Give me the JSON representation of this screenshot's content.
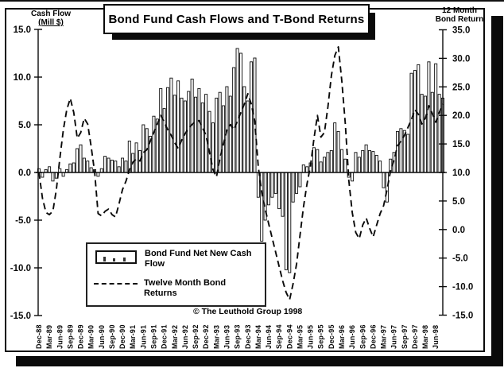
{
  "title": "Bond Fund Cash Flows and T-Bond Returns",
  "header": {
    "left_axis_title_line1": "Cash Flow",
    "left_axis_title_line2": "(Mill $)",
    "right_axis_title_line1": "12 Month",
    "right_axis_title_line2": "Bond Return"
  },
  "legend": {
    "bar_label_line1": "Bond Fund Net New Cash",
    "bar_label_line2": "Flow",
    "line_label_line1": "Twelve Month Bond",
    "line_label_line2": "Returns"
  },
  "footer": {
    "copyright": "© The Leuthold Group 1998"
  },
  "colors": {
    "ink": "#0a0a0a",
    "paper": "#ffffff"
  },
  "chart_data": {
    "type": "combo",
    "x_frequency": "monthly",
    "x_start": "Dec-88",
    "x_end": "Aug-98",
    "n_months": 117,
    "x_tick_labels": [
      "Dec-88",
      "Mar-89",
      "Jun-89",
      "Sep-89",
      "Dec-89",
      "Mar-90",
      "Jun-90",
      "Sep-90",
      "Dec-90",
      "Mar-91",
      "Jun-91",
      "Sep-91",
      "Dec-91",
      "Mar-92",
      "Jun-92",
      "Sep-92",
      "Dec-92",
      "Mar-93",
      "Jun-93",
      "Sep-93",
      "Dec-93",
      "Mar-94",
      "Jun-94",
      "Sep-94",
      "Dec-94",
      "Mar-95",
      "Jun-95",
      "Sep-95",
      "Dec-95",
      "Mar-96",
      "Jun-96",
      "Sep-96",
      "Dec-96",
      "Mar-97",
      "Jun-97",
      "Sep-97",
      "Dec-97",
      "Mar-98",
      "Jun-98"
    ],
    "left_axis": {
      "title": "Cash Flow (Mill $)",
      "min": -15,
      "max": 15,
      "tick_step": 5,
      "tick_labels": [
        "15.0",
        "10.0",
        "5.0",
        "0.0",
        "-5.0",
        "-10.0",
        "-15.0"
      ]
    },
    "right_axis": {
      "title": "12 Month Bond Return",
      "min": -15,
      "max": 35,
      "tick_step": 5,
      "tick_labels": [
        "35.0",
        "30.0",
        "25.0",
        "20.0",
        "15.0",
        "10.0",
        "5.0",
        "0.0",
        "-5.0",
        "-10.0",
        "-15.0"
      ]
    },
    "grid": false,
    "legend_position": "inside-bottom-left",
    "series": [
      {
        "name": "Bond Fund Net New Cash Flow",
        "type": "bar",
        "axis": "left",
        "values": [
          0.4,
          -0.5,
          0.3,
          0.6,
          -0.9,
          -0.6,
          0.4,
          -0.4,
          0.3,
          0.9,
          1.0,
          2.5,
          2.9,
          1.5,
          1.2,
          0.5,
          0.3,
          -0.4,
          0.4,
          1.7,
          1.5,
          1.3,
          1.2,
          0.6,
          1.5,
          1.2,
          3.3,
          2.0,
          3.1,
          2.3,
          5.0,
          4.6,
          3.8,
          5.9,
          5.6,
          8.8,
          6.7,
          8.9,
          9.9,
          8.1,
          9.6,
          7.8,
          7.5,
          8.5,
          9.8,
          7.9,
          8.8,
          7.3,
          8.2,
          6.4,
          5.2,
          7.8,
          8.4,
          7.0,
          9.0,
          8.0,
          11.0,
          13.0,
          12.5,
          9.0,
          7.5,
          11.6,
          12.0,
          -2.6,
          -7.2,
          -5.0,
          -3.4,
          -2.6,
          -2.2,
          -3.8,
          -4.6,
          -10.2,
          -10.5,
          -3.1,
          -2.2,
          -1.5,
          0.8,
          0.6,
          1.0,
          2.6,
          2.4,
          1.1,
          1.6,
          2.1,
          2.3,
          5.2,
          4.3,
          2.4,
          1.4,
          -0.5,
          -0.9,
          2.1,
          1.6,
          2.3,
          2.9,
          2.3,
          2.2,
          1.8,
          1.2,
          -1.6,
          -3.1,
          1.4,
          2.1,
          4.3,
          4.6,
          4.4,
          4.0,
          10.4,
          10.7,
          11.3,
          8.2,
          8.0,
          11.6,
          8.4,
          11.4,
          8.2,
          7.8
        ]
      },
      {
        "name": "Twelve Month Bond Returns",
        "type": "line",
        "style": "dashed",
        "axis": "right",
        "values": [
          10.0,
          5.5,
          3.0,
          2.6,
          3.2,
          7.0,
          12.5,
          17.5,
          21.0,
          23.0,
          20.5,
          16.0,
          17.0,
          19.5,
          18.5,
          14.5,
          10.0,
          2.8,
          2.4,
          3.2,
          3.6,
          2.6,
          2.2,
          4.5,
          7.0,
          8.5,
          10.5,
          11.8,
          12.4,
          12.0,
          13.5,
          14.0,
          15.5,
          17.0,
          18.5,
          20.0,
          18.8,
          17.5,
          16.5,
          15.2,
          14.2,
          15.7,
          16.8,
          17.8,
          18.4,
          19.0,
          19.1,
          17.8,
          16.5,
          13.5,
          10.5,
          9.2,
          12.5,
          15.0,
          17.5,
          18.4,
          17.5,
          19.0,
          20.5,
          22.0,
          23.8,
          22.0,
          19.0,
          11.0,
          6.5,
          3.5,
          1.0,
          -1.5,
          -4.0,
          -6.5,
          -9.0,
          -11.0,
          -12.3,
          -9.5,
          -6.0,
          -1.0,
          4.0,
          8.0,
          11.2,
          16.0,
          20.0,
          16.2,
          17.0,
          21.5,
          27.0,
          30.5,
          32.0,
          26.0,
          18.5,
          8.6,
          3.0,
          -0.5,
          -1.6,
          0.8,
          2.0,
          0.2,
          -1.3,
          0.8,
          2.8,
          4.2,
          7.0,
          10.3,
          12.2,
          14.7,
          15.5,
          16.5,
          17.9,
          19.3,
          21.0,
          20.2,
          18.5,
          19.5,
          21.7,
          20.3,
          18.8,
          20.5,
          22.0
        ]
      }
    ]
  }
}
